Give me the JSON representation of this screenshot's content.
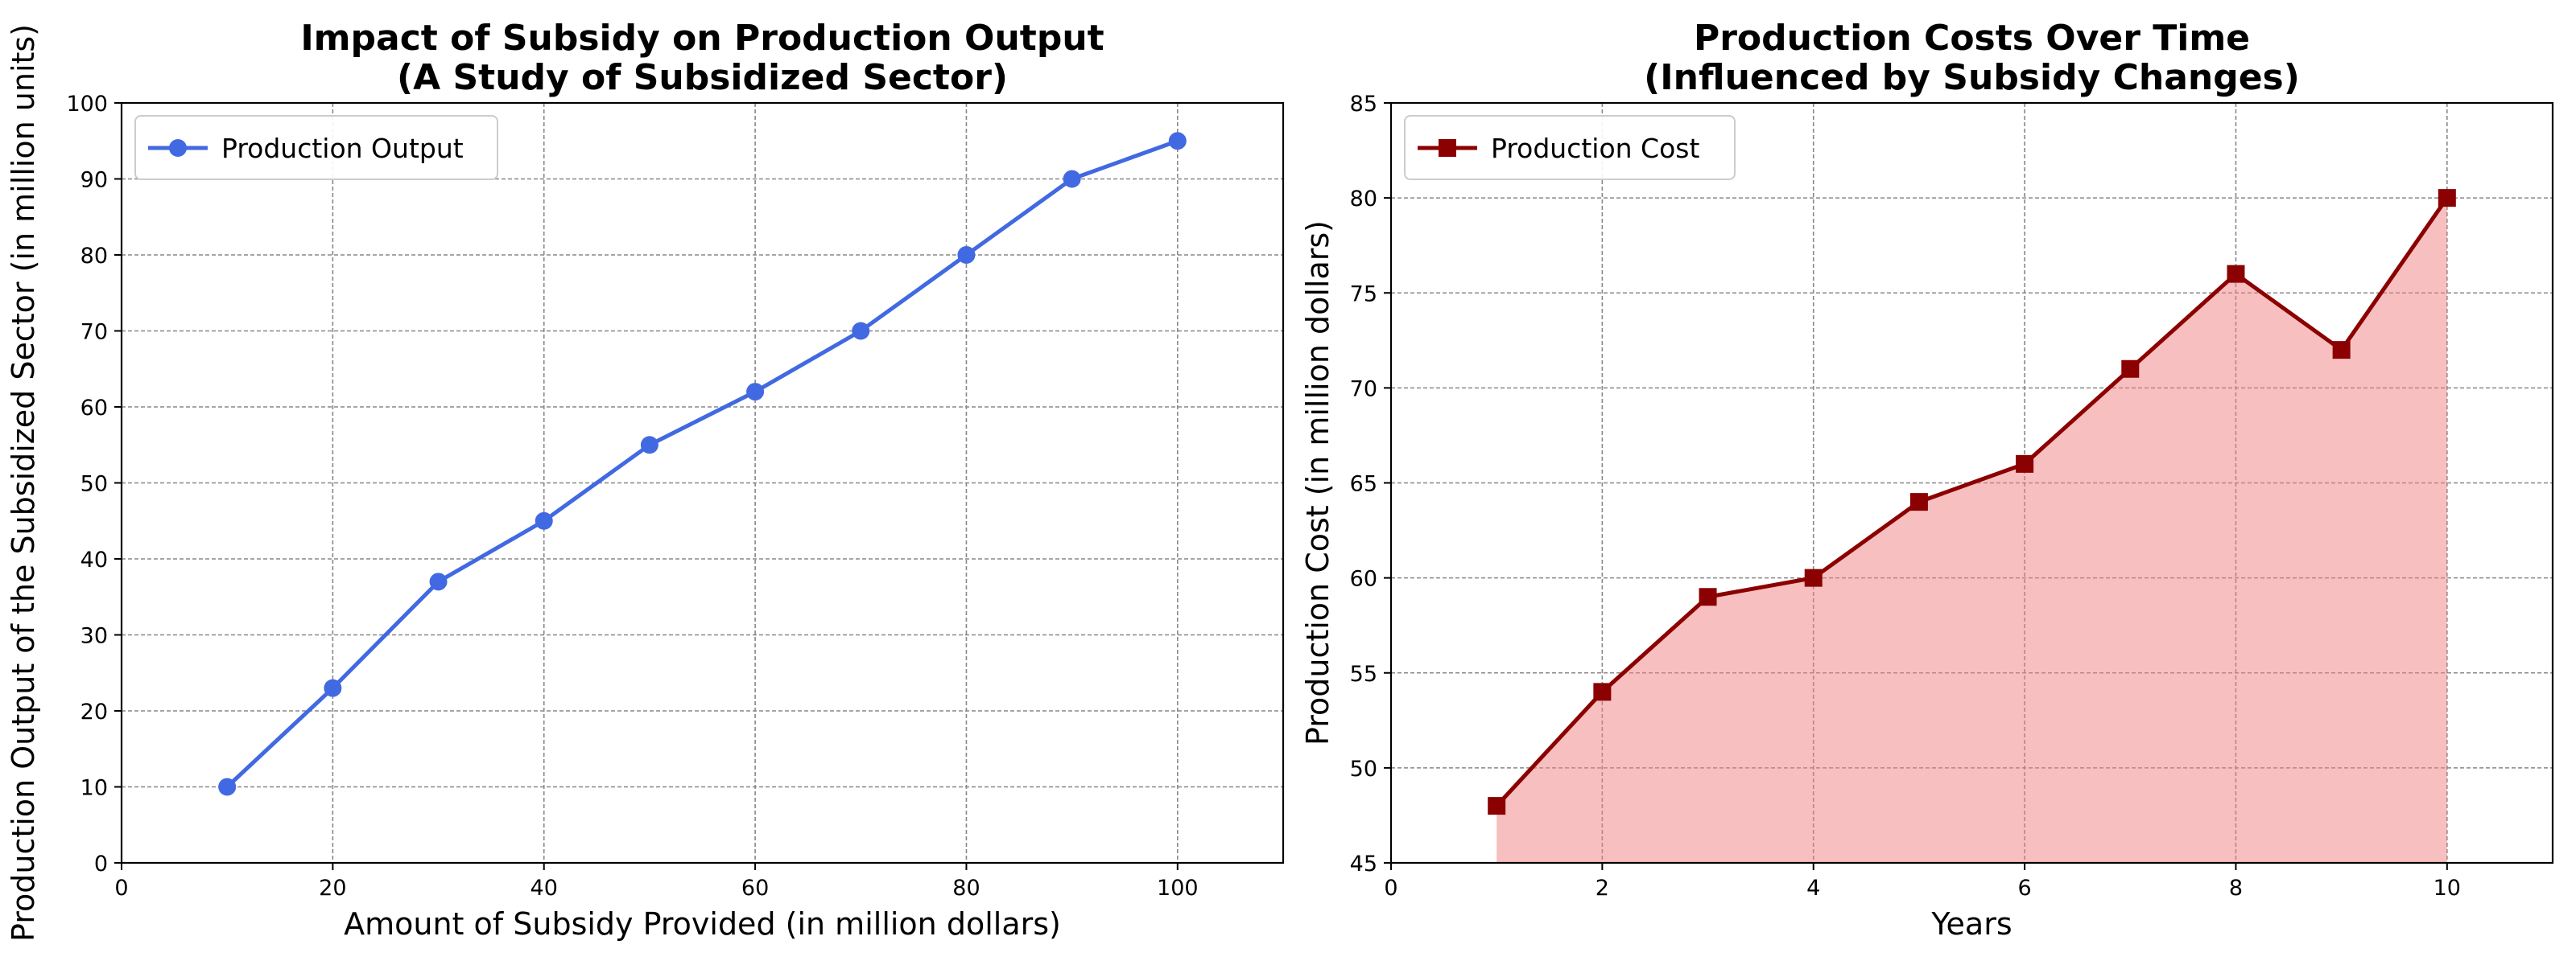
{
  "chart_data": [
    {
      "type": "line",
      "title": "Impact of Subsidy on Production Output\n(A Study of Subsidized Sector)",
      "xlabel": "Amount of Subsidy Provided (in million dollars)",
      "ylabel": "Production Output of the Subsidized Sector (in million units)",
      "xlim": [
        0,
        110
      ],
      "ylim": [
        0,
        100
      ],
      "xticks": [
        0,
        20,
        40,
        60,
        80,
        100
      ],
      "yticks": [
        0,
        10,
        20,
        30,
        40,
        50,
        60,
        70,
        80,
        90,
        100
      ],
      "grid": true,
      "legend_position": "upper-left",
      "series": [
        {
          "name": "Production Output",
          "color": "#4169e1",
          "marker": "circle",
          "fill": false,
          "x": [
            10,
            20,
            30,
            40,
            50,
            60,
            70,
            80,
            90,
            100
          ],
          "y": [
            10,
            23,
            37,
            45,
            55,
            62,
            70,
            80,
            90,
            95
          ]
        }
      ]
    },
    {
      "type": "area",
      "title": "Production Costs Over Time\n(Influenced by Subsidy Changes)",
      "xlabel": "Years",
      "ylabel": "Production Cost (in million dollars)",
      "xlim": [
        0,
        11
      ],
      "ylim": [
        45,
        85
      ],
      "xticks": [
        0,
        2,
        4,
        6,
        8,
        10
      ],
      "yticks": [
        45,
        50,
        55,
        60,
        65,
        70,
        75,
        80,
        85
      ],
      "grid": true,
      "legend_position": "upper-left",
      "series": [
        {
          "name": "Production Cost",
          "color": "#8b0000",
          "fill_color": "#f08080",
          "marker": "square",
          "fill": true,
          "x": [
            1,
            2,
            3,
            4,
            5,
            6,
            7,
            8,
            9,
            10
          ],
          "y": [
            48,
            54,
            59,
            60,
            64,
            66,
            71,
            76,
            72,
            80
          ]
        }
      ]
    }
  ]
}
